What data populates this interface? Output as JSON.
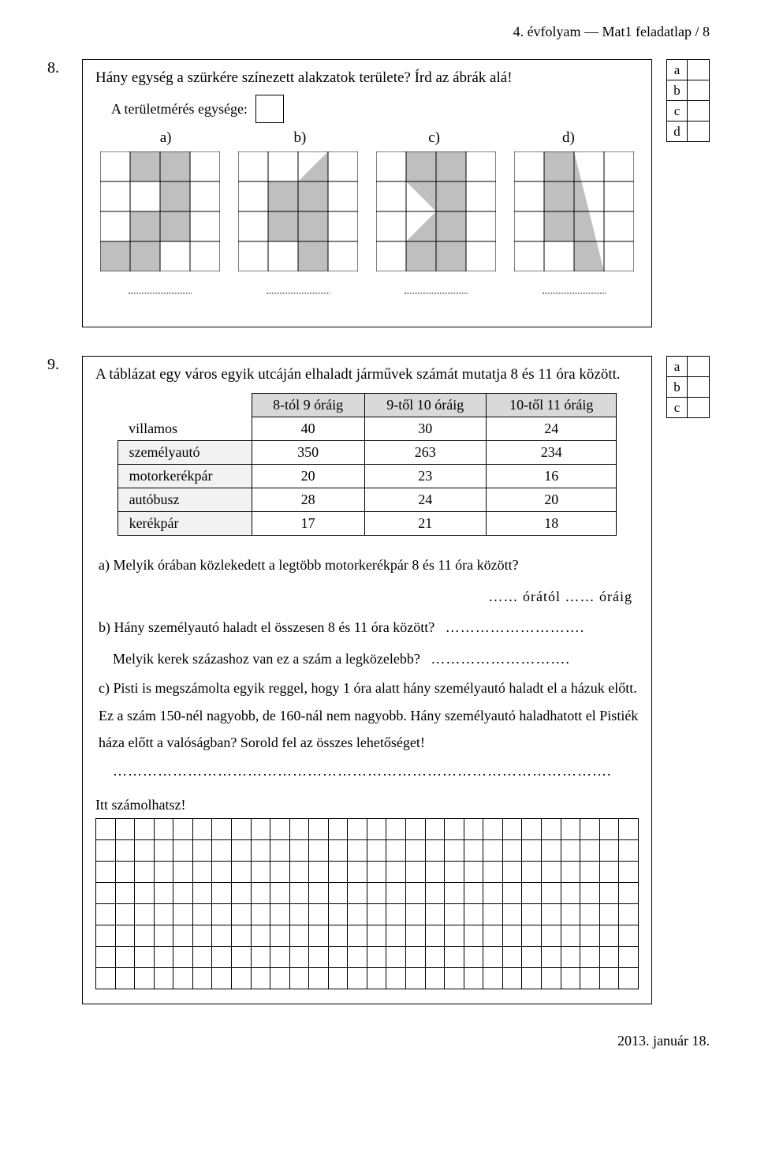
{
  "header": "4. évfolyam — Mat1 feladatlap / 8",
  "footer": "2013. január 18.",
  "task8": {
    "number": "8.",
    "question": "Hány egység a szürkére színezett alakzatok területe? Írd az ábrák alá!",
    "unit_label": "A területmérés egysége:",
    "parts": [
      "a)",
      "b)",
      "c)",
      "d)"
    ],
    "score_labels": [
      "a",
      "b",
      "c",
      "d"
    ],
    "grid": {
      "cols": 4,
      "rows": 4,
      "cell": 38
    },
    "fill": "#bfbfbf",
    "shapes": {
      "a": {
        "type": "rects",
        "cells": [
          [
            1,
            0
          ],
          [
            2,
            0
          ],
          [
            2,
            1
          ],
          [
            1,
            2
          ],
          [
            2,
            2
          ],
          [
            0,
            3
          ],
          [
            1,
            3
          ]
        ]
      },
      "b": {
        "type": "poly_plus_rects",
        "cells": [
          [
            1,
            1
          ],
          [
            2,
            1
          ],
          [
            1,
            2
          ],
          [
            2,
            2
          ],
          [
            2,
            3
          ]
        ],
        "poly": [
          [
            2,
            1
          ],
          [
            3,
            0
          ],
          [
            3,
            1
          ]
        ]
      },
      "c": {
        "type": "poly_plus_rects",
        "cells": [
          [
            1,
            0
          ],
          [
            2,
            0
          ],
          [
            1,
            3
          ],
          [
            2,
            3
          ]
        ],
        "polys": [
          [
            [
              1,
              1
            ],
            [
              2,
              1
            ],
            [
              1,
              2
            ]
          ],
          [
            [
              2,
              1
            ],
            [
              3,
              1
            ],
            [
              3,
              2
            ],
            [
              2,
              2
            ],
            [
              1,
              2
            ]
          ]
        ],
        "poly_single": [
          [
            2,
            0
          ],
          [
            3,
            0
          ],
          [
            3,
            4
          ],
          [
            2,
            4
          ],
          [
            2,
            3
          ],
          [
            1,
            2
          ],
          [
            2,
            1
          ]
        ]
      },
      "d": {
        "type": "poly",
        "poly": [
          [
            1,
            0
          ],
          [
            2,
            0
          ],
          [
            3,
            4
          ],
          [
            2,
            4
          ],
          [
            2,
            3
          ],
          [
            1,
            3
          ]
        ]
      }
    }
  },
  "task9": {
    "number": "9.",
    "intro": "A táblázat egy város egyik utcáján elhaladt járművek számát mutatja 8 és 11 óra között.",
    "score_labels": [
      "a",
      "b",
      "c"
    ],
    "columns": [
      "8-tól 9 óráig",
      "9-től 10 óráig",
      "10-től 11 óráig"
    ],
    "rows": [
      {
        "label": "villamos",
        "vals": [
          "40",
          "30",
          "24"
        ]
      },
      {
        "label": "személyautó",
        "vals": [
          "350",
          "263",
          "234"
        ]
      },
      {
        "label": "motorkerékpár",
        "vals": [
          "20",
          "23",
          "16"
        ]
      },
      {
        "label": "autóbusz",
        "vals": [
          "28",
          "24",
          "20"
        ]
      },
      {
        "label": "kerékpár",
        "vals": [
          "17",
          "21",
          "18"
        ]
      }
    ],
    "qa": "a) Melyik órában közlekedett a legtöbb motorkerékpár 8 és 11 óra között?",
    "qa_fill": "…… órától …… óráig",
    "qb1": "b) Hány személyautó haladt el összesen 8 és 11 óra között?",
    "qb1_fill": "……………………….",
    "qb2": "Melyik kerek százashoz van ez a szám a legközelebb?",
    "qb2_fill": "……………………….",
    "qc": "c) Pisti is megszámolta egyik reggel, hogy 1 óra alatt hány személyautó haladt el a házuk előtt. Ez a szám 150-nél nagyobb, de 160-nál nem nagyobb. Hány személyautó haladhatott el Pistiék háza előtt a valóságban? Sorold fel az összes lehetőséget!",
    "qc_fill": "……………………………………………………………………………………….",
    "calc_label": "Itt számolhatsz!",
    "calc_grid": {
      "cols": 28,
      "rows": 8
    }
  }
}
